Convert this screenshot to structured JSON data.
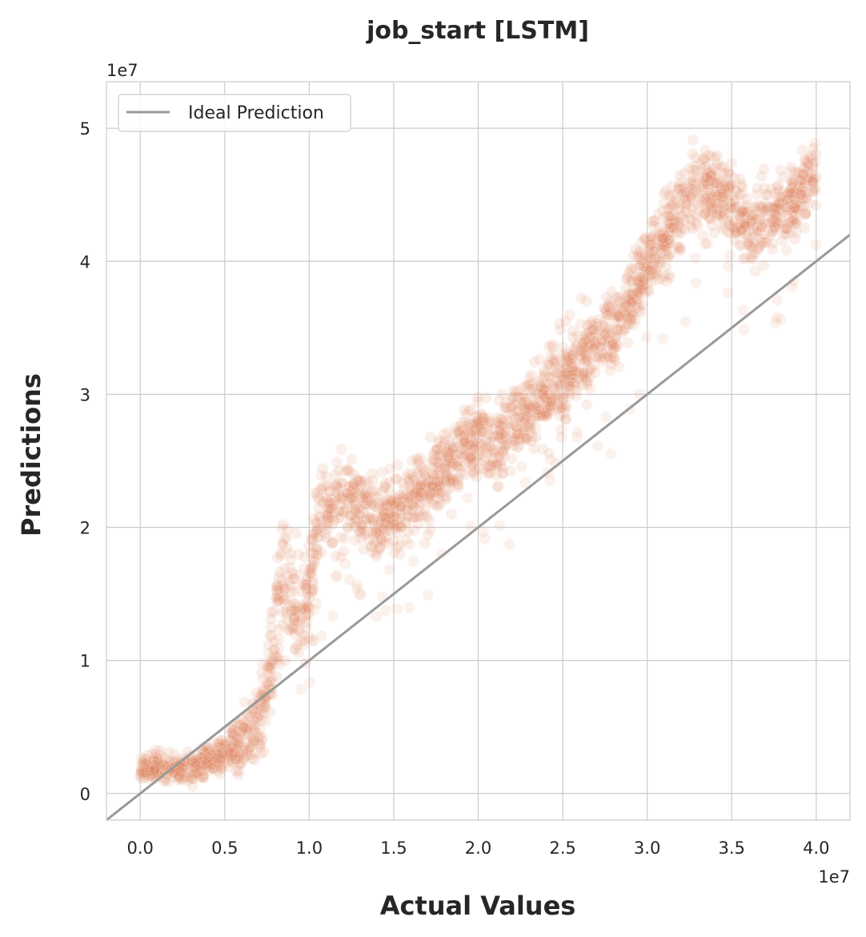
{
  "chart_data": {
    "type": "scatter",
    "title": "job_start [LSTM]",
    "xlabel": "Actual Values",
    "ylabel": "Predictions",
    "x_multiplier": "1e7",
    "y_multiplier": "1e7",
    "xlim": [
      -0.2,
      4.2
    ],
    "ylim": [
      -0.2,
      5.35
    ],
    "xticks": [
      0.0,
      0.5,
      1.0,
      1.5,
      2.0,
      2.5,
      3.0,
      3.5,
      4.0
    ],
    "xtick_labels": [
      "0.0",
      "0.5",
      "1.0",
      "1.5",
      "2.0",
      "2.5",
      "3.0",
      "3.5",
      "4.0"
    ],
    "yticks": [
      0,
      1,
      2,
      3,
      4,
      5
    ],
    "ytick_labels": [
      "0",
      "1",
      "2",
      "3",
      "4",
      "5"
    ],
    "grid": true,
    "legend": {
      "placement": "top-left",
      "entries": [
        "Ideal Prediction"
      ]
    },
    "colors": {
      "points": "#e07b4f",
      "ideal_line": "#999999",
      "grid": "#cccccc"
    },
    "reference_line": {
      "name": "Ideal Prediction",
      "slope": 1,
      "intercept": 0
    },
    "series": [
      {
        "trend": [
          [
            0.0,
            0.18
          ],
          [
            0.1,
            0.2
          ],
          [
            0.2,
            0.19
          ],
          [
            0.3,
            0.2
          ],
          [
            0.4,
            0.25
          ],
          [
            0.5,
            0.3
          ],
          [
            0.6,
            0.4
          ],
          [
            0.7,
            0.55
          ],
          [
            0.75,
            0.75
          ],
          [
            0.8,
            1.3
          ],
          [
            0.85,
            1.6
          ],
          [
            0.9,
            1.5
          ],
          [
            0.95,
            1.2
          ],
          [
            1.0,
            1.6
          ],
          [
            1.05,
            2.05
          ],
          [
            1.1,
            2.1
          ],
          [
            1.2,
            2.2
          ],
          [
            1.3,
            2.15
          ],
          [
            1.4,
            2.05
          ],
          [
            1.5,
            2.1
          ],
          [
            1.6,
            2.2
          ],
          [
            1.7,
            2.3
          ],
          [
            1.8,
            2.4
          ],
          [
            1.9,
            2.6
          ],
          [
            2.0,
            2.7
          ],
          [
            2.1,
            2.6
          ],
          [
            2.2,
            2.8
          ],
          [
            2.3,
            2.85
          ],
          [
            2.4,
            3.0
          ],
          [
            2.5,
            3.1
          ],
          [
            2.6,
            3.25
          ],
          [
            2.7,
            3.4
          ],
          [
            2.8,
            3.45
          ],
          [
            2.9,
            3.7
          ],
          [
            3.0,
            4.0
          ],
          [
            3.1,
            4.15
          ],
          [
            3.2,
            4.4
          ],
          [
            3.3,
            4.55
          ],
          [
            3.4,
            4.5
          ],
          [
            3.5,
            4.45
          ],
          [
            3.6,
            4.2
          ],
          [
            3.7,
            4.35
          ],
          [
            3.8,
            4.4
          ],
          [
            3.9,
            4.5
          ],
          [
            4.0,
            4.65
          ]
        ],
        "spread": [
          [
            0.0,
            0.08
          ],
          [
            0.5,
            0.12
          ],
          [
            0.75,
            0.3
          ],
          [
            0.85,
            0.45
          ],
          [
            1.0,
            0.35
          ],
          [
            1.1,
            0.3
          ],
          [
            1.4,
            0.25
          ],
          [
            2.0,
            0.25
          ],
          [
            2.5,
            0.28
          ],
          [
            3.0,
            0.25
          ],
          [
            3.5,
            0.28
          ],
          [
            4.0,
            0.25
          ]
        ]
      }
    ]
  }
}
